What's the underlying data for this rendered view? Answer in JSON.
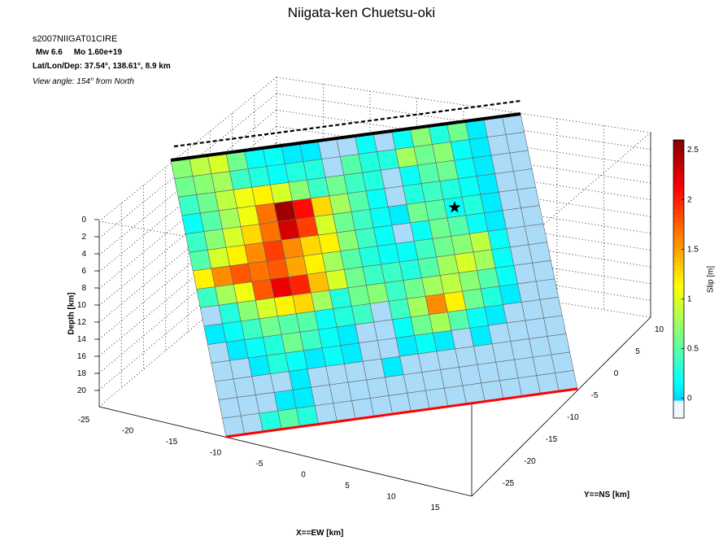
{
  "header": {
    "title": "Niigata-ken Chuetsu-oki",
    "model_id": "s2007NIIGAT01CIRE",
    "mw": "Mw 6.6",
    "mo": "Mo 1.60e+19",
    "lat_lon_dep": "Lat/Lon/Dep: 37.54°, 138.61°, 8.9 km",
    "view_angle": "View angle: 154° from North"
  },
  "axes": {
    "depth_label": "Depth [km]",
    "x_label": "X==EW [km]",
    "y_label": "Y==NS [km]",
    "colorbar_label": "Slip [m]",
    "depth_ticks": [
      "0",
      "2",
      "4",
      "6",
      "8",
      "10",
      "12",
      "14",
      "16",
      "18",
      "20"
    ],
    "x_ticks": [
      "-25",
      "-20",
      "-15",
      "-10",
      "-5",
      "0",
      "5",
      "10",
      "15"
    ],
    "y_ticks": [
      "-25",
      "-20",
      "-15",
      "-10",
      "-5",
      "0",
      "5",
      "10"
    ],
    "colorbar_ticks": [
      "0",
      "0.5",
      "1",
      "1.5",
      "2",
      "2.5"
    ]
  },
  "chart_data": {
    "type": "heatmap",
    "title": "Niigata-ken Chuetsu-oki",
    "x_label": "X==EW [km]",
    "y_label": "Y==NS [km]",
    "z_label": "Depth [km]",
    "color_label": "Slip [m]",
    "x_range": [
      -25,
      15
    ],
    "y_range": [
      -25,
      10
    ],
    "depth_range": [
      0,
      20
    ],
    "color_range": [
      -0.2,
      2.6
    ],
    "grid_rows": 15,
    "grid_cols": 19,
    "hypocenter_cell": [
      4,
      14
    ],
    "top_edge_color": "#000000",
    "bottom_edge_color": "#ff0000",
    "slip": [
      [
        0.7,
        0.9,
        1.0,
        0.6,
        0.2,
        0.2,
        0.1,
        0.1,
        0.0,
        -0.1,
        0.2,
        0.0,
        0.2,
        0.7,
        0.3,
        0.6,
        0.1,
        0.0,
        0.0
      ],
      [
        0.6,
        0.7,
        0.8,
        0.4,
        0.3,
        0.2,
        0.3,
        0.3,
        0.0,
        0.5,
        0.3,
        0.3,
        0.8,
        0.6,
        0.7,
        0.2,
        0.1,
        0.0,
        0.0
      ],
      [
        0.4,
        0.6,
        0.9,
        1.1,
        1.2,
        1.0,
        0.7,
        0.4,
        0.6,
        0.4,
        0.3,
        -0.1,
        0.2,
        0.5,
        0.6,
        0.2,
        0.1,
        0.0,
        0.0
      ],
      [
        0.2,
        0.5,
        0.8,
        1.1,
        1.7,
        2.5,
        2.1,
        1.3,
        0.8,
        0.5,
        0.2,
        0.0,
        0.3,
        0.4,
        0.3,
        0.2,
        0.1,
        0.0,
        0.0
      ],
      [
        0.4,
        0.7,
        1.0,
        1.3,
        1.7,
        2.3,
        1.9,
        1.0,
        0.6,
        0.4,
        0.2,
        0.1,
        0.6,
        0.5,
        0.2,
        0.3,
        0.1,
        0.0,
        0.0
      ],
      [
        0.5,
        1.0,
        1.2,
        1.6,
        1.9,
        1.6,
        1.3,
        1.2,
        0.7,
        0.4,
        0.2,
        0.0,
        0.2,
        0.6,
        0.5,
        0.2,
        0.1,
        0.0,
        0.0
      ],
      [
        1.2,
        1.6,
        1.8,
        1.7,
        1.8,
        1.5,
        1.2,
        0.8,
        0.5,
        0.3,
        0.2,
        0.2,
        0.4,
        0.6,
        0.7,
        0.9,
        0.2,
        0.0,
        0.0
      ],
      [
        0.4,
        0.8,
        1.1,
        1.8,
        2.2,
        2.0,
        1.4,
        1.0,
        0.6,
        0.4,
        0.4,
        0.3,
        0.5,
        0.8,
        1.0,
        0.8,
        0.2,
        0.0,
        0.0
      ],
      [
        0.0,
        0.3,
        0.7,
        1.0,
        1.2,
        1.3,
        0.8,
        0.3,
        0.6,
        0.7,
        0.4,
        0.6,
        0.8,
        0.9,
        0.7,
        0.5,
        0.2,
        0.0,
        0.0
      ],
      [
        0.1,
        0.2,
        0.4,
        0.6,
        0.5,
        0.5,
        0.2,
        0.3,
        0.4,
        -0.1,
        0.4,
        0.8,
        1.6,
        1.2,
        0.6,
        0.3,
        0.1,
        0.0,
        0.0
      ],
      [
        0.0,
        0.1,
        0.2,
        0.3,
        0.6,
        0.4,
        0.2,
        0.1,
        0.0,
        -0.1,
        0.2,
        0.6,
        0.8,
        0.5,
        0.2,
        0.1,
        0.0,
        0.0,
        0.0
      ],
      [
        0.0,
        0.0,
        0.1,
        0.3,
        0.2,
        0.1,
        0.2,
        0.1,
        0.0,
        0.0,
        0.1,
        0.2,
        0.1,
        0.0,
        0.1,
        0.0,
        0.0,
        0.0,
        0.0
      ],
      [
        0.0,
        0.0,
        0.0,
        0.0,
        0.1,
        0.0,
        0.0,
        0.0,
        0.0,
        0.1,
        0.0,
        0.0,
        0.0,
        0.0,
        0.0,
        0.0,
        0.0,
        0.0,
        0.0
      ],
      [
        0.0,
        0.0,
        0.0,
        0.1,
        0.1,
        0.0,
        0.0,
        0.0,
        0.0,
        0.0,
        0.0,
        0.0,
        0.0,
        0.0,
        0.0,
        0.0,
        0.0,
        0.0,
        0.0
      ],
      [
        0.0,
        0.0,
        0.3,
        0.5,
        0.3,
        0.0,
        0.0,
        0.0,
        0.0,
        0.0,
        0.0,
        0.0,
        0.0,
        0.0,
        0.0,
        0.0,
        0.0,
        0.0,
        0.0
      ]
    ]
  }
}
